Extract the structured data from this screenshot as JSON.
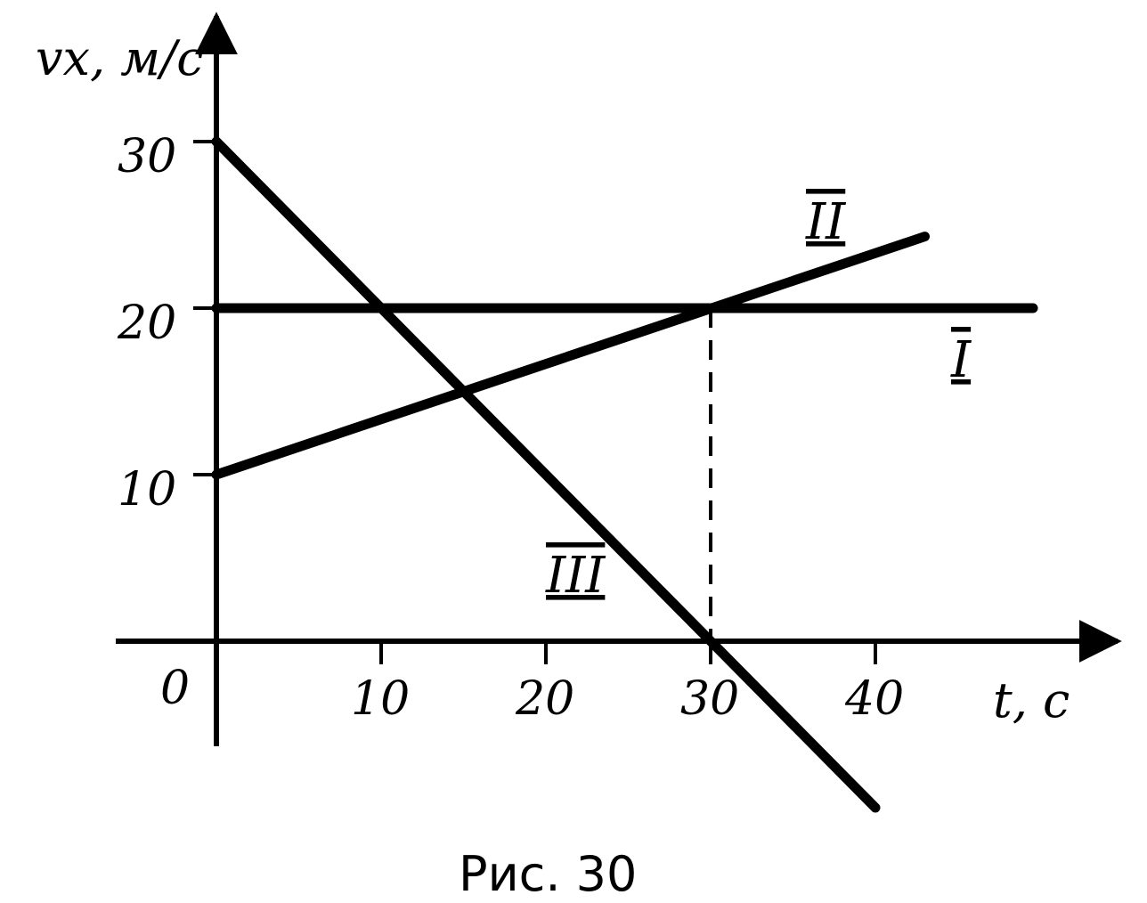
{
  "caption": "Рис. 30",
  "chart_data": {
    "type": "line",
    "xlabel": "t, с",
    "ylabel": "vx, м/с",
    "xlim": [
      0,
      45
    ],
    "ylim": [
      -10,
      35
    ],
    "xticks": [
      10,
      20,
      30,
      40
    ],
    "yticks": [
      10,
      20,
      30
    ],
    "origin_label": "0",
    "grid": false,
    "series": [
      {
        "name": "I",
        "x": [
          0,
          50
        ],
        "values": [
          20,
          20
        ]
      },
      {
        "name": "II",
        "x": [
          0,
          43
        ],
        "values": [
          10,
          24.3
        ]
      },
      {
        "name": "III",
        "x": [
          0,
          40
        ],
        "values": [
          30,
          -10
        ]
      }
    ],
    "annotations": [
      {
        "type": "dashed-vertical",
        "x": 30,
        "y_from": 0,
        "y_to": 20
      }
    ]
  }
}
